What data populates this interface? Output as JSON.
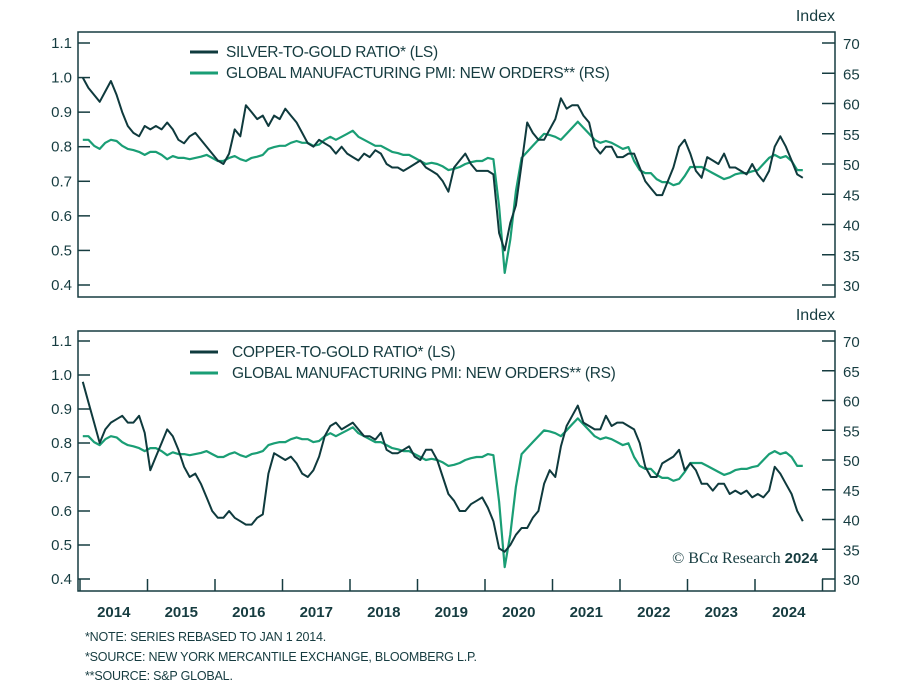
{
  "colors": {
    "ratio": "#0f3a3d",
    "pmi": "#1a9e75",
    "axis": "#163c40"
  },
  "chart_data": [
    {
      "type": "line",
      "frequency": "monthly",
      "right_axis_unit": "Index",
      "left_ylim": [
        0.4,
        1.1
      ],
      "right_ylim": [
        30,
        70
      ],
      "left_ticks": [
        "1.1",
        "1.0",
        "0.9",
        "0.8",
        "0.7",
        "0.6",
        "0.5",
        "0.4"
      ],
      "right_ticks": [
        "70",
        "65",
        "60",
        "55",
        "50",
        "45",
        "40",
        "35",
        "30"
      ],
      "legend_placement": "top-left",
      "grid": false,
      "series": [
        {
          "name": "SILVER-TO-GOLD RATIO* (LS)",
          "axis": "left",
          "color": "#0f3a3d",
          "values_by_year": {
            "2014": [
              1.0,
              0.97,
              0.95,
              0.93,
              0.96,
              0.99,
              0.95,
              0.9,
              0.86,
              0.84,
              0.83,
              0.86
            ],
            "2015": [
              0.85,
              0.86,
              0.85,
              0.87,
              0.85,
              0.82,
              0.81,
              0.83,
              0.84,
              0.82,
              0.8,
              0.78
            ],
            "2016": [
              0.76,
              0.75,
              0.78,
              0.85,
              0.83,
              0.92,
              0.9,
              0.88,
              0.89,
              0.86,
              0.89,
              0.88
            ],
            "2017": [
              0.91,
              0.89,
              0.87,
              0.84,
              0.81,
              0.8,
              0.82,
              0.81,
              0.8,
              0.78,
              0.8,
              0.78
            ],
            "2018": [
              0.77,
              0.76,
              0.78,
              0.77,
              0.79,
              0.78,
              0.75,
              0.74,
              0.74,
              0.73,
              0.74,
              0.75
            ],
            "2019": [
              0.76,
              0.74,
              0.73,
              0.72,
              0.7,
              0.67,
              0.74,
              0.76,
              0.78,
              0.75,
              0.73,
              0.73
            ],
            "2020": [
              0.73,
              0.72,
              0.55,
              0.5,
              0.58,
              0.63,
              0.75,
              0.87,
              0.84,
              0.82,
              0.82,
              0.85
            ],
            "2021": [
              0.88,
              0.94,
              0.91,
              0.92,
              0.92,
              0.89,
              0.87,
              0.8,
              0.78,
              0.8,
              0.8,
              0.77
            ],
            "2022": [
              0.77,
              0.78,
              0.78,
              0.74,
              0.7,
              0.68,
              0.66,
              0.66,
              0.7,
              0.74,
              0.8,
              0.82
            ],
            "2023": [
              0.78,
              0.73,
              0.71,
              0.77,
              0.76,
              0.75,
              0.78,
              0.74,
              0.74,
              0.73,
              0.72,
              0.75
            ],
            "2024": [
              0.72,
              0.7,
              0.73,
              0.8,
              0.83,
              0.8,
              0.76,
              0.72,
              0.71
            ]
          }
        },
        {
          "name": "GLOBAL MANUFACTURING PMI: NEW ORDERS** (RS)",
          "axis": "right",
          "color": "#1a9e75",
          "values_by_year": {
            "2014": [
              54.0,
              54.0,
              53.0,
              52.5,
              53.5,
              54.0,
              53.8,
              53.0,
              52.5,
              52.3,
              52.0,
              51.5
            ],
            "2015": [
              52.0,
              52.0,
              51.5,
              50.8,
              51.3,
              51.0,
              51.0,
              50.8,
              51.0,
              51.2,
              51.5,
              51.0
            ],
            "2016": [
              50.5,
              50.5,
              51.0,
              51.3,
              50.8,
              50.5,
              51.0,
              51.2,
              51.5,
              52.5,
              52.8,
              53.0
            ],
            "2017": [
              53.0,
              53.5,
              53.8,
              53.5,
              53.5,
              53.0,
              53.2,
              54.0,
              54.5,
              54.0,
              54.5,
              55.0
            ],
            "2018": [
              55.5,
              54.5,
              54.0,
              53.5,
              53.0,
              53.0,
              52.5,
              52.0,
              51.8,
              51.5,
              51.5,
              51.0
            ],
            "2019": [
              50.5,
              50.0,
              50.2,
              50.0,
              49.6,
              49.0,
              49.2,
              49.5,
              50.0,
              50.3,
              50.5,
              50.5
            ],
            "2020": [
              51.0,
              50.8,
              43.0,
              32.0,
              37.5,
              45.5,
              51.0,
              52.0,
              53.0,
              54.0,
              55.0,
              54.8
            ],
            "2021": [
              54.5,
              54.0,
              55.0,
              56.0,
              57.0,
              56.0,
              55.0,
              54.0,
              53.5,
              53.8,
              53.5,
              53.0
            ],
            "2022": [
              52.5,
              52.8,
              50.5,
              49.0,
              48.5,
              48.5,
              47.5,
              47.0,
              47.0,
              46.5,
              46.8,
              48.0
            ],
            "2023": [
              49.5,
              49.5,
              49.5,
              49.0,
              48.5,
              48.0,
              47.5,
              47.8,
              48.3,
              48.5,
              48.5,
              48.8
            ],
            "2024": [
              49.0,
              50.0,
              51.0,
              51.5,
              51.0,
              51.3,
              50.5,
              49.0,
              49.0
            ]
          }
        }
      ]
    },
    {
      "type": "line",
      "frequency": "monthly",
      "right_axis_unit": "Index",
      "left_ylim": [
        0.4,
        1.1
      ],
      "right_ylim": [
        30,
        70
      ],
      "left_ticks": [
        "1.1",
        "1.0",
        "0.9",
        "0.8",
        "0.7",
        "0.6",
        "0.5",
        "0.4"
      ],
      "right_ticks": [
        "70",
        "65",
        "60",
        "55",
        "50",
        "45",
        "40",
        "35",
        "30"
      ],
      "x_tick_labels": [
        "2014",
        "2015",
        "2016",
        "2017",
        "2018",
        "2019",
        "2020",
        "2021",
        "2022",
        "2023",
        "2024"
      ],
      "legend_placement": "top-left",
      "grid": false,
      "series": [
        {
          "name": "COPPER-TO-GOLD RATIO* (LS)",
          "axis": "left",
          "color": "#0f3a3d",
          "values_by_year": {
            "2014": [
              0.98,
              0.92,
              0.86,
              0.8,
              0.84,
              0.86,
              0.87,
              0.88,
              0.86,
              0.86,
              0.88,
              0.83
            ],
            "2015": [
              0.72,
              0.76,
              0.8,
              0.84,
              0.82,
              0.78,
              0.73,
              0.7,
              0.71,
              0.68,
              0.64,
              0.6
            ],
            "2016": [
              0.58,
              0.58,
              0.6,
              0.58,
              0.57,
              0.56,
              0.56,
              0.58,
              0.59,
              0.71,
              0.77,
              0.76
            ],
            "2017": [
              0.75,
              0.76,
              0.74,
              0.71,
              0.7,
              0.72,
              0.76,
              0.82,
              0.85,
              0.86,
              0.84,
              0.85
            ],
            "2018": [
              0.86,
              0.84,
              0.82,
              0.82,
              0.81,
              0.83,
              0.78,
              0.77,
              0.77,
              0.78,
              0.79,
              0.76
            ],
            "2019": [
              0.75,
              0.78,
              0.78,
              0.75,
              0.7,
              0.65,
              0.63,
              0.6,
              0.6,
              0.62,
              0.63,
              0.64
            ],
            "2020": [
              0.61,
              0.57,
              0.49,
              0.48,
              0.5,
              0.53,
              0.55,
              0.55,
              0.58,
              0.6,
              0.68,
              0.72
            ],
            "2021": [
              0.7,
              0.79,
              0.85,
              0.88,
              0.91,
              0.86,
              0.85,
              0.84,
              0.84,
              0.88,
              0.85,
              0.86
            ],
            "2022": [
              0.86,
              0.85,
              0.84,
              0.8,
              0.73,
              0.7,
              0.7,
              0.74,
              0.75,
              0.76,
              0.78,
              0.72
            ],
            "2023": [
              0.74,
              0.72,
              0.68,
              0.68,
              0.66,
              0.68,
              0.68,
              0.65,
              0.66,
              0.65,
              0.66,
              0.64
            ],
            "2024": [
              0.65,
              0.64,
              0.66,
              0.73,
              0.71,
              0.68,
              0.65,
              0.6,
              0.57
            ]
          }
        },
        {
          "name": "GLOBAL MANUFACTURING PMI: NEW ORDERS** (RS)",
          "axis": "right",
          "color": "#1a9e75",
          "values_by_year": {
            "2014": [
              54.0,
              54.0,
              53.0,
              52.5,
              53.5,
              54.0,
              53.8,
              53.0,
              52.5,
              52.3,
              52.0,
              51.5
            ],
            "2015": [
              52.0,
              52.0,
              51.5,
              50.8,
              51.3,
              51.0,
              51.0,
              50.8,
              51.0,
              51.2,
              51.5,
              51.0
            ],
            "2016": [
              50.5,
              50.5,
              51.0,
              51.3,
              50.8,
              50.5,
              51.0,
              51.2,
              51.5,
              52.5,
              52.8,
              53.0
            ],
            "2017": [
              53.0,
              53.5,
              53.8,
              53.5,
              53.5,
              53.0,
              53.2,
              54.0,
              54.5,
              54.0,
              54.5,
              55.0
            ],
            "2018": [
              55.5,
              54.5,
              54.0,
              53.5,
              53.0,
              53.0,
              52.5,
              52.0,
              51.8,
              51.5,
              51.5,
              51.0
            ],
            "2019": [
              50.5,
              50.0,
              50.2,
              50.0,
              49.6,
              49.0,
              49.2,
              49.5,
              50.0,
              50.3,
              50.5,
              50.5
            ],
            "2020": [
              51.0,
              50.8,
              43.0,
              32.0,
              37.5,
              45.5,
              51.0,
              52.0,
              53.0,
              54.0,
              55.0,
              54.8
            ],
            "2021": [
              54.5,
              54.0,
              55.0,
              56.0,
              57.0,
              56.0,
              55.0,
              54.0,
              53.5,
              53.8,
              53.5,
              53.0
            ],
            "2022": [
              52.5,
              52.8,
              50.5,
              49.0,
              48.5,
              48.5,
              47.5,
              47.0,
              47.0,
              46.5,
              46.8,
              48.0
            ],
            "2023": [
              49.5,
              49.5,
              49.5,
              49.0,
              48.5,
              48.0,
              47.5,
              47.8,
              48.3,
              48.5,
              48.5,
              48.8
            ],
            "2024": [
              49.0,
              50.0,
              51.0,
              51.5,
              51.0,
              51.3,
              50.5,
              49.0,
              49.0
            ]
          }
        }
      ]
    }
  ],
  "copyright": {
    "symbol": "©",
    "brand": "BCα Research",
    "year": "2024"
  },
  "notes": [
    "*NOTE: SERIES REBASED TO JAN 1 2014.",
    "*SOURCE: NEW YORK MERCANTILE EXCHANGE, BLOOMBERG L.P.",
    "**SOURCE: S&P GLOBAL."
  ]
}
